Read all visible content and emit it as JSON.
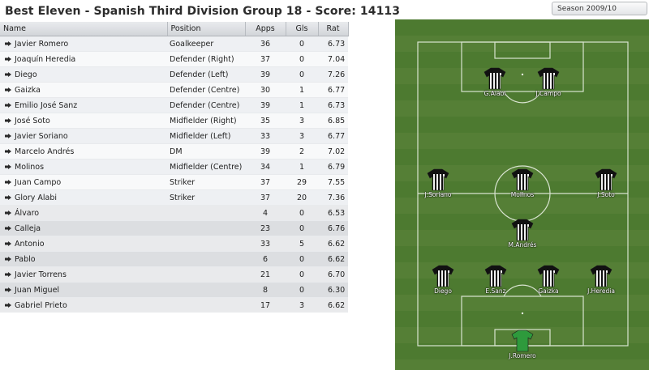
{
  "title": "Best Eleven - Spanish Third Division Group 18 - Score: 14113",
  "season": "Season 2009/10",
  "table": {
    "headers": [
      "Name",
      "Position",
      "Apps",
      "Gls",
      "Rat"
    ],
    "rows": [
      {
        "name": "Javier Romero",
        "position": "Goalkeeper",
        "apps": "36",
        "gls": "0",
        "rat": "6.73"
      },
      {
        "name": "Joaquín Heredia",
        "position": "Defender (Right)",
        "apps": "37",
        "gls": "0",
        "rat": "7.04"
      },
      {
        "name": "Diego",
        "position": "Defender (Left)",
        "apps": "39",
        "gls": "0",
        "rat": "7.26"
      },
      {
        "name": "Gaizka",
        "position": "Defender (Centre)",
        "apps": "30",
        "gls": "1",
        "rat": "6.77"
      },
      {
        "name": "Emilio José Sanz",
        "position": "Defender (Centre)",
        "apps": "39",
        "gls": "1",
        "rat": "6.73"
      },
      {
        "name": "José Soto",
        "position": "Midfielder (Right)",
        "apps": "35",
        "gls": "3",
        "rat": "6.85"
      },
      {
        "name": "Javier Soriano",
        "position": "Midfielder (Left)",
        "apps": "33",
        "gls": "3",
        "rat": "6.77"
      },
      {
        "name": "Marcelo Andrés",
        "position": "DM",
        "apps": "39",
        "gls": "2",
        "rat": "7.02"
      },
      {
        "name": "Molinos",
        "position": "Midfielder (Centre)",
        "apps": "34",
        "gls": "1",
        "rat": "6.79"
      },
      {
        "name": "Juan Campo",
        "position": "Striker",
        "apps": "37",
        "gls": "29",
        "rat": "7.55"
      },
      {
        "name": "Glory Alabi",
        "position": "Striker",
        "apps": "37",
        "gls": "20",
        "rat": "7.36"
      },
      {
        "name": "Álvaro",
        "position": "",
        "apps": "4",
        "gls": "0",
        "rat": "6.53"
      },
      {
        "name": "Calleja",
        "position": "",
        "apps": "23",
        "gls": "0",
        "rat": "6.76"
      },
      {
        "name": "Antonio",
        "position": "",
        "apps": "33",
        "gls": "5",
        "rat": "6.62"
      },
      {
        "name": "Pablo",
        "position": "",
        "apps": "6",
        "gls": "0",
        "rat": "6.62"
      },
      {
        "name": "Javier Torrens",
        "position": "",
        "apps": "21",
        "gls": "0",
        "rat": "6.70"
      },
      {
        "name": "Juan Miguel",
        "position": "",
        "apps": "8",
        "gls": "0",
        "rat": "6.30"
      },
      {
        "name": "Gabriel Prieto",
        "position": "",
        "apps": "17",
        "gls": "3",
        "rat": "6.62"
      }
    ]
  },
  "pitch": {
    "players": [
      {
        "label": "G.Alabi",
        "kit": "striped"
      },
      {
        "label": "J.Campo",
        "kit": "striped"
      },
      {
        "label": "J.Soriano",
        "kit": "striped"
      },
      {
        "label": "Molinos",
        "kit": "striped"
      },
      {
        "label": "J.Soto",
        "kit": "striped"
      },
      {
        "label": "M.Andrés",
        "kit": "striped"
      },
      {
        "label": "Diego",
        "kit": "striped"
      },
      {
        "label": "E.Sanz",
        "kit": "striped"
      },
      {
        "label": "Gaizka",
        "kit": "striped"
      },
      {
        "label": "J.Heredia",
        "kit": "striped"
      },
      {
        "label": "J.Romero",
        "kit": "goalkeeper"
      }
    ]
  },
  "colors": {
    "pitch_dark": "#4d7a30",
    "pitch_light": "#557f36",
    "kit_stripe_a": "#111111",
    "kit_stripe_b": "#f2f2f2",
    "gk_kit": "#2e9a3c"
  },
  "icons": {
    "row_marker": "arrow-pin-icon"
  }
}
